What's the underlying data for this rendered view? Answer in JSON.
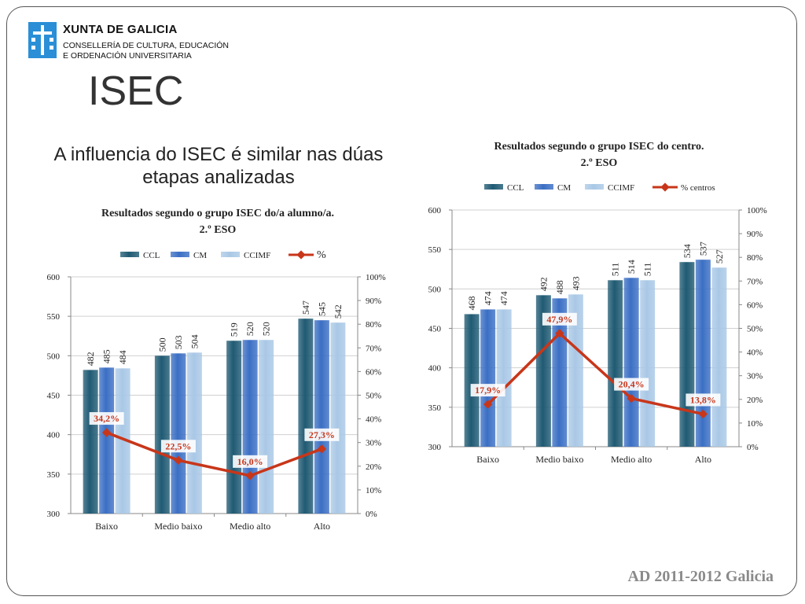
{
  "header": {
    "org_name": "XUNTA DE GALICIA",
    "org_sub_1": "CONSELLERÍA DE CULTURA, EDUCACIÓN",
    "org_sub_2": "E ORDENACIÓN UNIVERSITARIA",
    "logo": "xunta-shield-logo"
  },
  "slide": {
    "title": "ISEC",
    "subtitle": "A influencia do ISEC é similar nas dúas etapas analizadas",
    "footer": "AD 2011-2012 Galicia"
  },
  "colors": {
    "ccl": "#1f5a73",
    "cm": "#3b6fc4",
    "ccimf": "#a9c8e6",
    "line": "#c8361a",
    "label": "#c8361a"
  },
  "chart_data": [
    {
      "type": "bar",
      "title_1": "Resultados segundo o grupo ISEC do/a alumno/a.",
      "title_2": "2.º ESO",
      "categories": [
        "Baixo",
        "Medio baixo",
        "Medio alto",
        "Alto"
      ],
      "series": [
        {
          "name": "CCL",
          "values": [
            482,
            500,
            519,
            547
          ]
        },
        {
          "name": "CM",
          "values": [
            485,
            503,
            520,
            545
          ]
        },
        {
          "name": "CCIMF",
          "values": [
            484,
            504,
            520,
            542
          ]
        }
      ],
      "value_labels": [
        [
          "482",
          "485",
          "484"
        ],
        [
          "500",
          "503",
          "504"
        ],
        [
          "519",
          "520",
          "520"
        ],
        [
          "547",
          "545",
          "542"
        ]
      ],
      "line": {
        "name": "%",
        "values": [
          34.2,
          22.5,
          16.0,
          27.3
        ],
        "labels": [
          "34,2%",
          "22,5%",
          "16,0%",
          "27,3%"
        ]
      },
      "ylim": [
        300,
        600
      ],
      "yticks": [
        "300",
        "350",
        "400",
        "450",
        "500",
        "550",
        "600"
      ],
      "y2lim": [
        0,
        100
      ],
      "y2ticks": [
        "0%",
        "10%",
        "20%",
        "30%",
        "40%",
        "50%",
        "60%",
        "70%",
        "80%",
        "90%",
        "100%"
      ],
      "legend": "top"
    },
    {
      "type": "bar",
      "title_1": "Resultados segundo o grupo ISEC do centro.",
      "title_2": "2.º ESO",
      "categories": [
        "Baixo",
        "Medio baixo",
        "Medio alto",
        "Alto"
      ],
      "series": [
        {
          "name": "CCL",
          "values": [
            468,
            492,
            511,
            534
          ]
        },
        {
          "name": "CM",
          "values": [
            474,
            488,
            514,
            537
          ]
        },
        {
          "name": "CCIMF",
          "values": [
            474,
            493,
            511,
            527
          ]
        }
      ],
      "value_labels": [
        [
          "468",
          "474",
          "474"
        ],
        [
          "492",
          "488",
          "493"
        ],
        [
          "511",
          "514",
          "511"
        ],
        [
          "534",
          "537",
          "527"
        ]
      ],
      "line": {
        "name": "% centros",
        "values": [
          17.9,
          47.9,
          20.4,
          13.8
        ],
        "labels": [
          "17,9%",
          "47,9%",
          "20,4%",
          "13,8%"
        ]
      },
      "ylim": [
        300,
        600
      ],
      "yticks": [
        "300",
        "350",
        "400",
        "450",
        "500",
        "550",
        "600"
      ],
      "y2lim": [
        0,
        100
      ],
      "y2ticks": [
        "0%",
        "10%",
        "20%",
        "30%",
        "40%",
        "50%",
        "60%",
        "70%",
        "80%",
        "90%",
        "100%"
      ],
      "legend": "top"
    }
  ]
}
